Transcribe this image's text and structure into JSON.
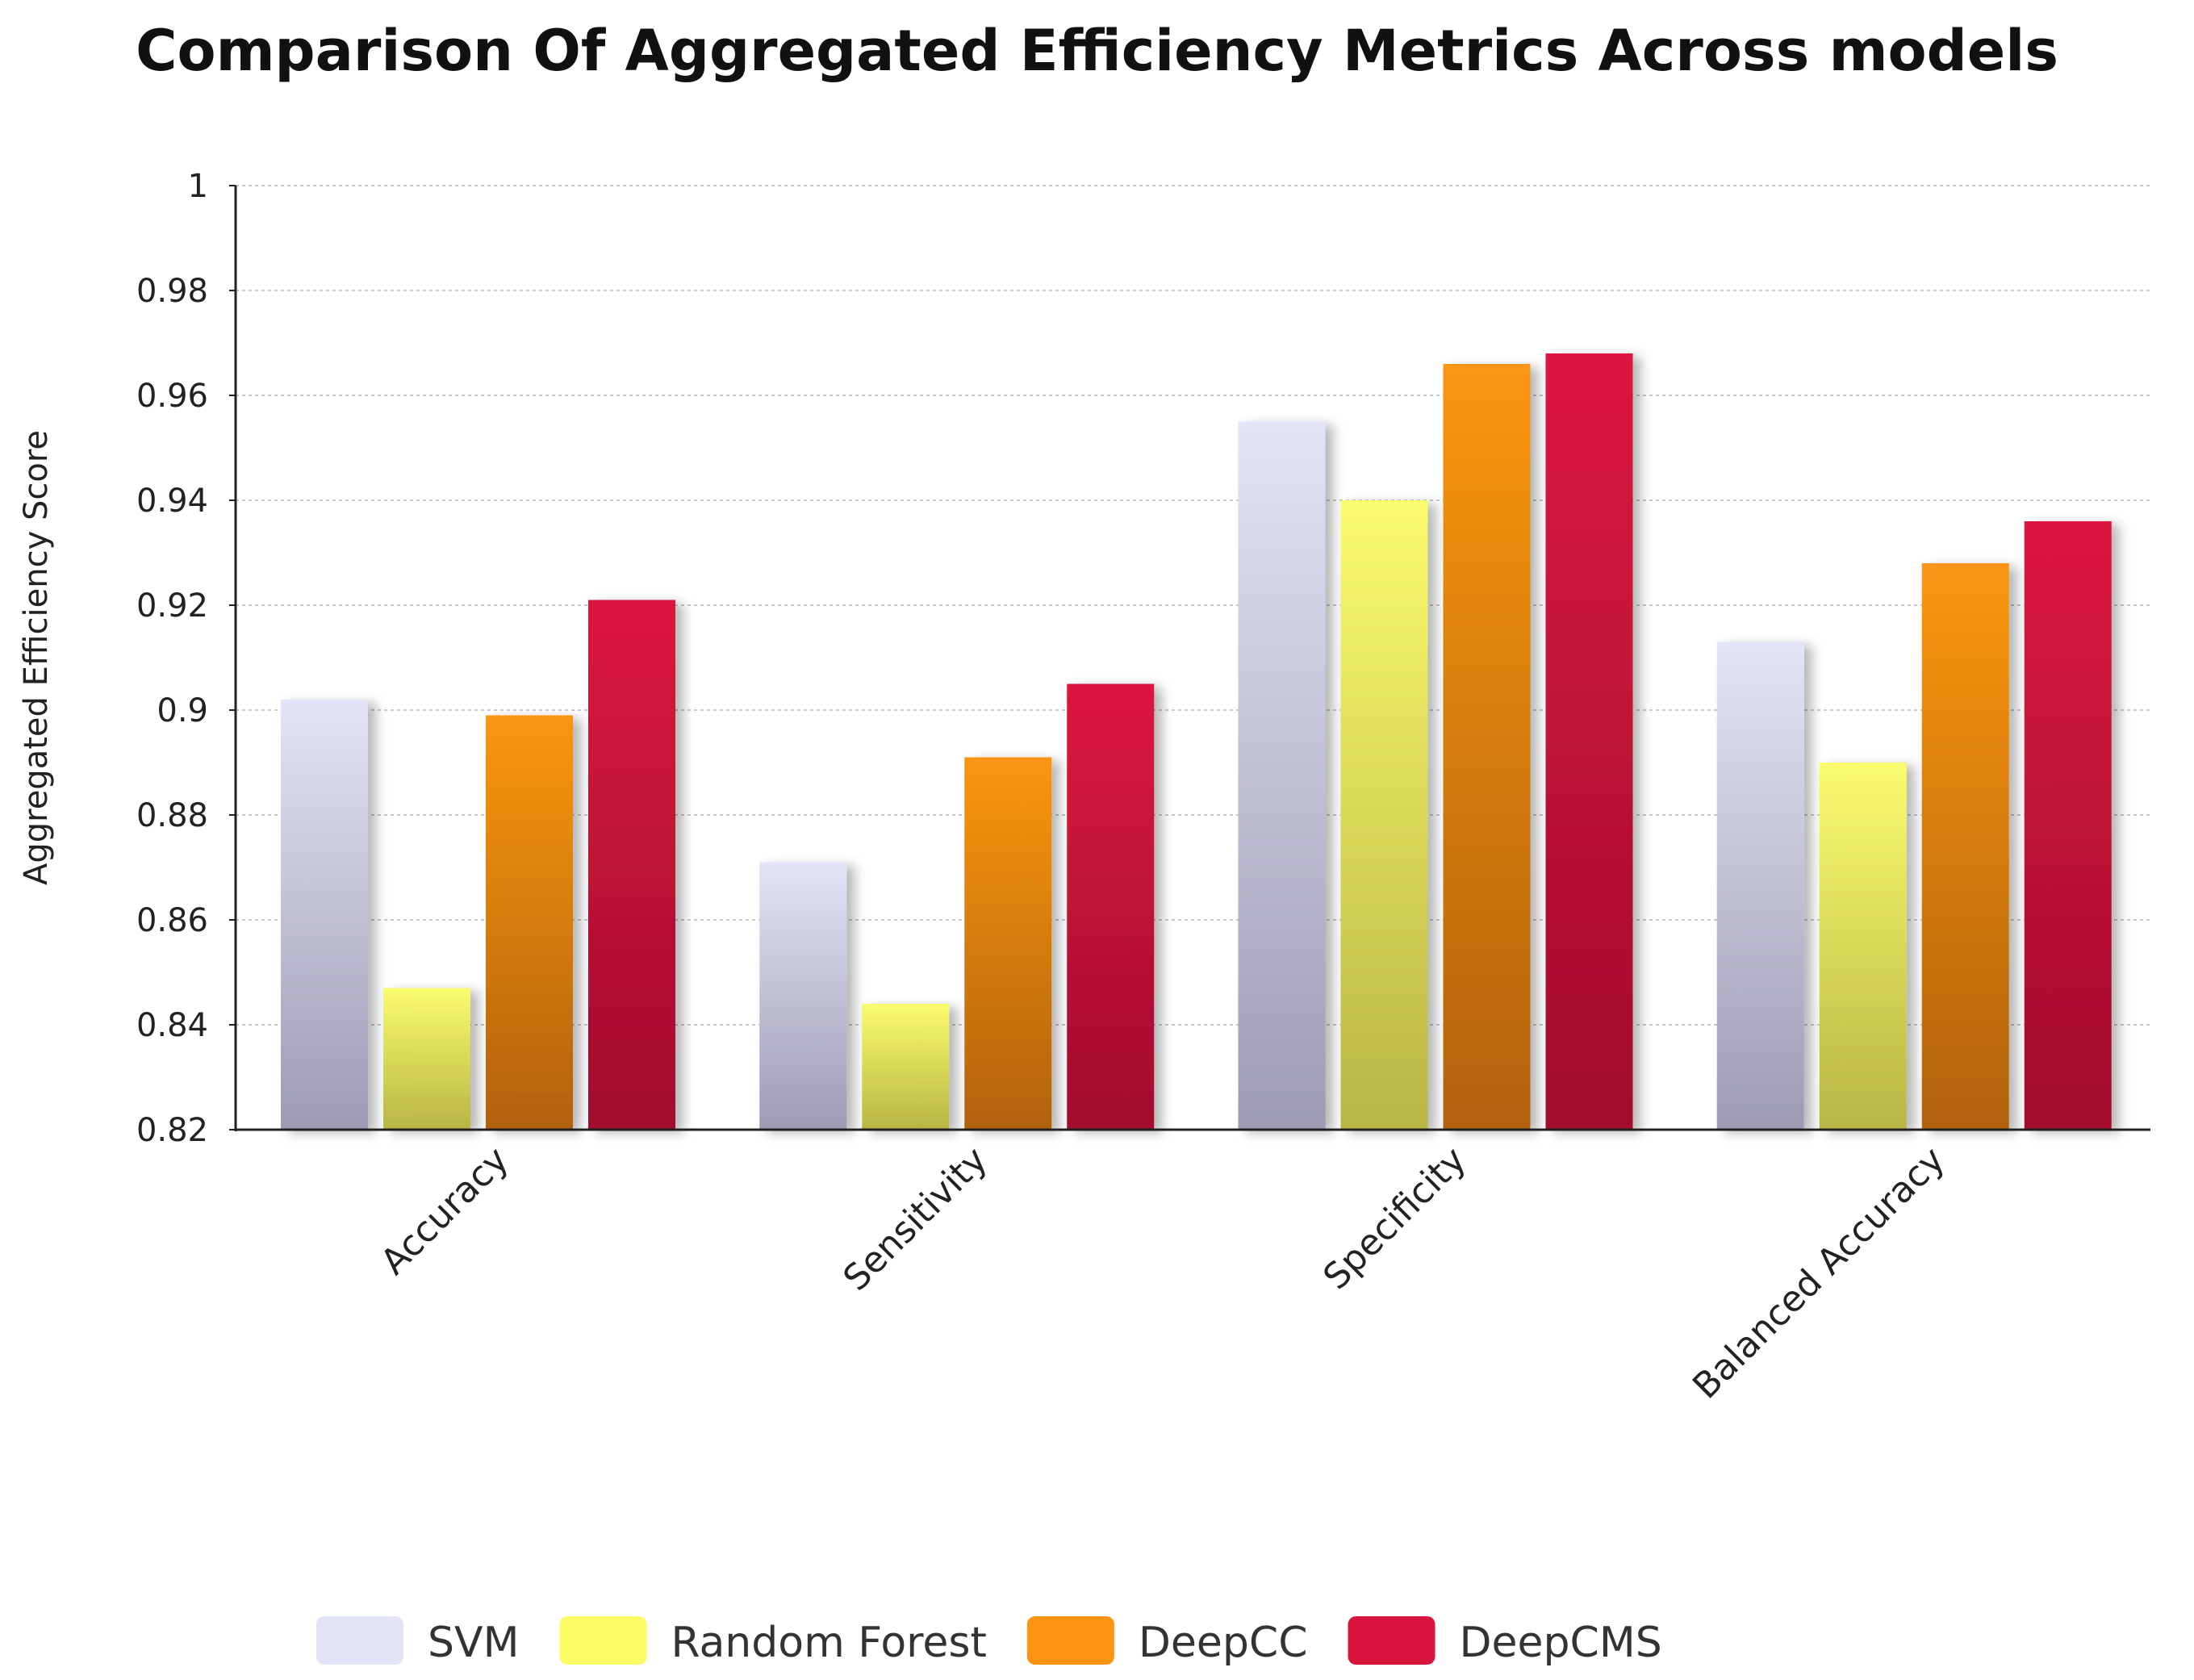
{
  "chart_data": {
    "type": "bar",
    "title": "Comparison Of Aggregated Efficiency Metrics Across models",
    "xlabel": "",
    "ylabel": "Aggregated Efficiency Score",
    "ylim": [
      0.82,
      1.0
    ],
    "yticks": [
      "0.82",
      "0.84",
      "0.86",
      "0.88",
      "0.9",
      "0.92",
      "0.94",
      "0.96",
      "0.98",
      "1"
    ],
    "ytick_values": [
      0.82,
      0.84,
      0.86,
      0.88,
      0.9,
      0.92,
      0.94,
      0.96,
      0.98,
      1.0
    ],
    "grid": true,
    "legend_position": "bottom",
    "categories": [
      "Accuracy",
      "Sensitivity",
      "Specificity",
      "Balanced Accuracy"
    ],
    "series": [
      {
        "name": "SVM",
        "values": [
          0.902,
          0.871,
          0.955,
          0.913
        ],
        "color_top": "#e3e4f8",
        "color_bottom": "#9d9bb4",
        "legend_color": "#e2e3f7"
      },
      {
        "name": "Random Forest",
        "values": [
          0.847,
          0.844,
          0.94,
          0.89
        ],
        "color_top": "#fbfb6e",
        "color_bottom": "#b9b544",
        "legend_color": "#fbfb66"
      },
      {
        "name": "DeepCC",
        "values": [
          0.899,
          0.891,
          0.966,
          0.928
        ],
        "color_top": "#fa9612",
        "color_bottom": "#b16208",
        "legend_color": "#fb9410"
      },
      {
        "name": "DeepCMS",
        "values": [
          0.921,
          0.905,
          0.968,
          0.936
        ],
        "color_top": "#dc163f",
        "color_bottom": "#a10e2c",
        "legend_color": "#d8153c"
      }
    ]
  }
}
